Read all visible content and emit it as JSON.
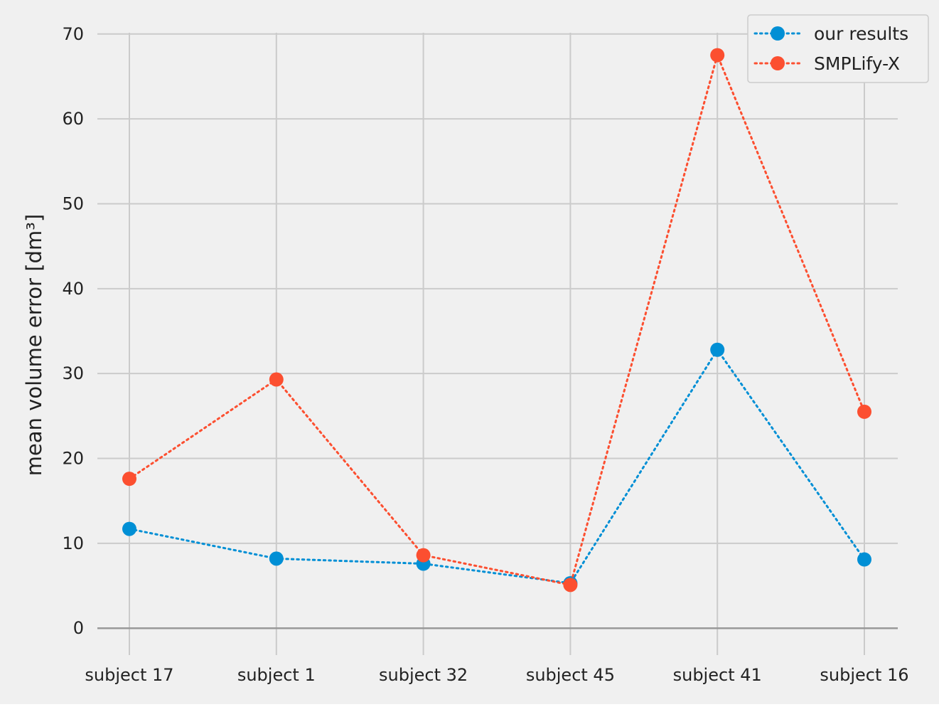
{
  "chart_data": {
    "type": "line",
    "title": "",
    "xlabel": "",
    "ylabel": "mean volume error [dm³]",
    "categories": [
      "subject 17",
      "subject 1",
      "subject 32",
      "subject 45",
      "subject 41",
      "subject 16"
    ],
    "ylim": [
      -3.5,
      73.5
    ],
    "yticks": [
      0,
      10,
      20,
      30,
      40,
      50,
      60,
      70
    ],
    "grid": true,
    "legend_position": "top-right",
    "line_style": "dotted",
    "marker": "circle",
    "series": [
      {
        "name": "our results",
        "color": "#008fd5",
        "values": [
          11.7,
          8.2,
          7.6,
          5.3,
          32.8,
          8.1
        ]
      },
      {
        "name": "SMPLify-X",
        "color": "#fc4f30",
        "values": [
          17.6,
          29.3,
          8.6,
          5.1,
          67.5,
          25.5
        ]
      }
    ],
    "colors": {
      "background": "#f0f0f0",
      "grid": "#cbcbcb",
      "baseline": "#999999"
    }
  }
}
